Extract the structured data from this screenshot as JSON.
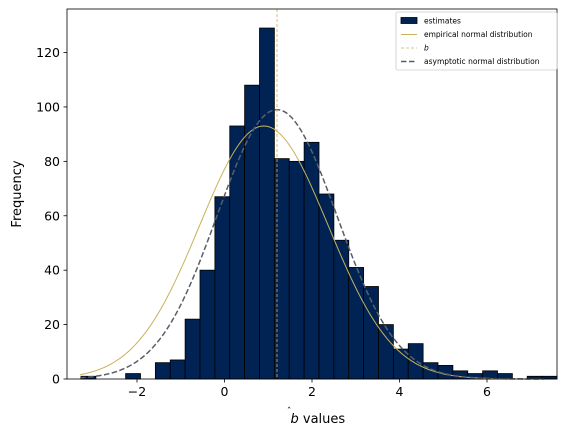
{
  "chart_data": {
    "type": "bar",
    "xlabel_prefix": "b",
    "xlabel_suffix": " values",
    "ylabel": "Frequency",
    "xlim": [
      -3.6,
      7.6
    ],
    "ylim": [
      0,
      136
    ],
    "xticks": [
      -2,
      0,
      2,
      4,
      6
    ],
    "yticks": [
      0,
      20,
      40,
      60,
      80,
      100,
      120
    ],
    "grid": false,
    "legend_placement": "top-right",
    "bin_width": 0.34,
    "bins": [
      {
        "x0": -3.28,
        "count": 1
      },
      {
        "x0": -2.94,
        "count": 0
      },
      {
        "x0": -2.6,
        "count": 0
      },
      {
        "x0": -2.26,
        "count": 2
      },
      {
        "x0": -1.92,
        "count": 0
      },
      {
        "x0": -1.58,
        "count": 6
      },
      {
        "x0": -1.24,
        "count": 7
      },
      {
        "x0": -0.9,
        "count": 22
      },
      {
        "x0": -0.56,
        "count": 40
      },
      {
        "x0": -0.22,
        "count": 67
      },
      {
        "x0": 0.12,
        "count": 93
      },
      {
        "x0": 0.46,
        "count": 108
      },
      {
        "x0": 0.8,
        "count": 129
      },
      {
        "x0": 1.14,
        "count": 81
      },
      {
        "x0": 1.48,
        "count": 80
      },
      {
        "x0": 1.82,
        "count": 87
      },
      {
        "x0": 2.16,
        "count": 68
      },
      {
        "x0": 2.5,
        "count": 51
      },
      {
        "x0": 2.84,
        "count": 41
      },
      {
        "x0": 3.18,
        "count": 34
      },
      {
        "x0": 3.52,
        "count": 20
      },
      {
        "x0": 3.86,
        "count": 11
      },
      {
        "x0": 4.2,
        "count": 13
      },
      {
        "x0": 4.54,
        "count": 6
      },
      {
        "x0": 4.88,
        "count": 5
      },
      {
        "x0": 5.22,
        "count": 3
      },
      {
        "x0": 5.56,
        "count": 2
      },
      {
        "x0": 5.9,
        "count": 3
      },
      {
        "x0": 6.24,
        "count": 2
      },
      {
        "x0": 6.58,
        "count": 0
      },
      {
        "x0": 6.92,
        "count": 1
      },
      {
        "x0": 7.26,
        "count": 1
      }
    ],
    "empirical_normal": {
      "mean": 0.9,
      "sd": 1.47,
      "peak": 93
    },
    "asymptotic_normal": {
      "mean": 1.2,
      "sd": 1.37,
      "peak": 99
    },
    "b_value": 1.2,
    "legend": [
      {
        "key": "estimates",
        "label": "estimates",
        "style": "patch"
      },
      {
        "key": "empirical",
        "label": "empirical normal distribution",
        "style": "solid-line"
      },
      {
        "key": "b",
        "label": "b",
        "style": "dashed-thin"
      },
      {
        "key": "asymptotic",
        "label": "asymptotic normal distribution",
        "style": "dashed"
      }
    ],
    "colors": {
      "bar_fill": "#012353",
      "bar_edge": "#000000",
      "empirical": "#c8b25c",
      "b_line": "#c8b25c",
      "asymptotic": "#595f69"
    }
  }
}
